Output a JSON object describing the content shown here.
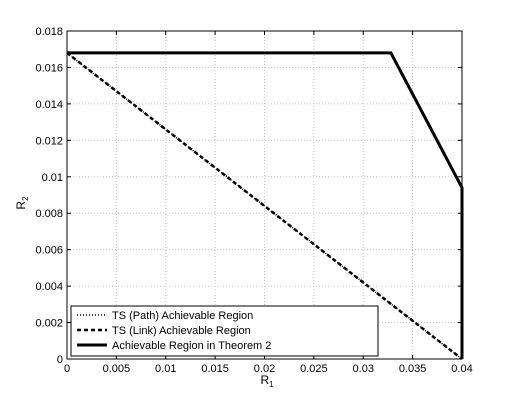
{
  "chart_data": {
    "type": "line",
    "xlabel": "R",
    "xlabel_sub": "1",
    "ylabel": "R",
    "ylabel_sub": "2",
    "xlim": [
      0,
      0.04
    ],
    "ylim": [
      0,
      0.018
    ],
    "xticks": [
      "0",
      "0.005",
      "0.01",
      "0.015",
      "0.02",
      "0.025",
      "0.03",
      "0.035",
      "0.04"
    ],
    "yticks": [
      "0",
      "0.002",
      "0.004",
      "0.006",
      "0.008",
      "0.01",
      "0.012",
      "0.014",
      "0.016",
      "0.018"
    ],
    "grid": true,
    "legend_position": "bottom-left",
    "series": [
      {
        "name": "TS (Path) Achievable Region",
        "style": "dotted",
        "color": "#000000",
        "x": [
          0,
          0.04
        ],
        "y": [
          0.0168,
          0
        ]
      },
      {
        "name": "TS (Link) Achievable Region",
        "style": "dashed",
        "color": "#000000",
        "x": [
          0,
          0.04
        ],
        "y": [
          0.0168,
          0
        ]
      },
      {
        "name": "Achievable Region in Theorem 2",
        "style": "solid",
        "color": "#000000",
        "x": [
          0,
          0.0328,
          0.04,
          0.04
        ],
        "y": [
          0.0168,
          0.0168,
          0.0094,
          0
        ]
      }
    ]
  }
}
